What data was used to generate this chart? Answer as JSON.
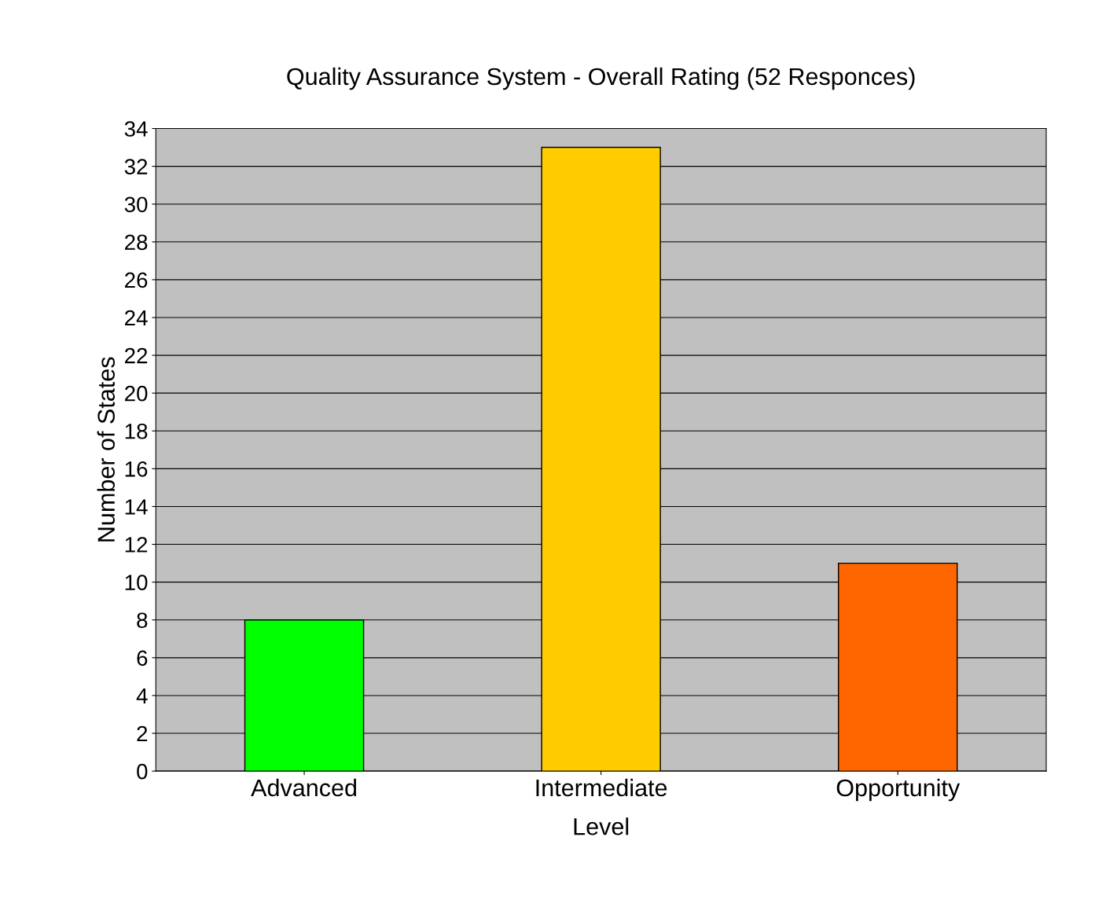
{
  "chart_data": {
    "type": "bar",
    "title": "Quality Assurance System - Overall Rating (52 Responces)",
    "xlabel": "Level",
    "ylabel": "Number of States",
    "categories": [
      "Advanced",
      "Intermediate",
      "Opportunity"
    ],
    "values": [
      8,
      33,
      11
    ],
    "colors": [
      "#00ff00",
      "#ffcc00",
      "#ff6600"
    ],
    "ylim": [
      0,
      34
    ],
    "yticks": [
      0,
      2,
      4,
      6,
      8,
      10,
      12,
      14,
      16,
      18,
      20,
      22,
      24,
      26,
      28,
      30,
      32,
      34
    ],
    "grid": "y",
    "legend": false
  }
}
